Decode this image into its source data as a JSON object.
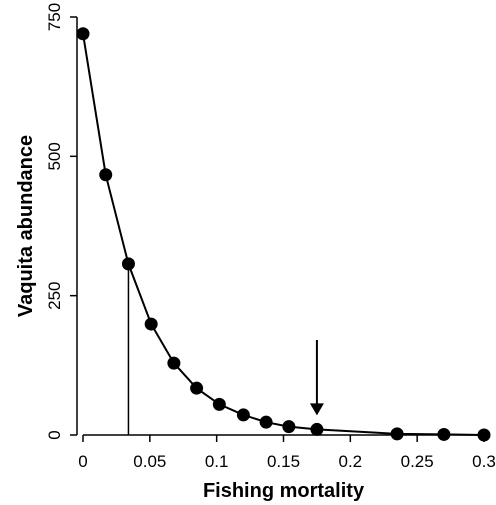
{
  "chart_data": {
    "type": "line",
    "xlabel": "Fishing mortality",
    "ylabel": "Vaquita abundance",
    "xlim": [
      0,
      0.3
    ],
    "ylim": [
      0,
      750
    ],
    "x_ticks": [
      0,
      0.05,
      0.1,
      0.15,
      0.2,
      0.25,
      0.3
    ],
    "x_tick_labels": [
      "0",
      "0.05",
      "0.1",
      "0.15",
      "0.2",
      "0.25",
      "0.3"
    ],
    "y_ticks": [
      0,
      250,
      500,
      750
    ],
    "y_tick_labels": [
      "0",
      "250",
      "500",
      "750"
    ],
    "grid": false,
    "legend": "none",
    "series": [
      {
        "x": [
          0,
          0.017,
          0.034,
          0.051,
          0.068,
          0.085,
          0.102,
          0.12,
          0.137,
          0.154,
          0.175,
          0.235,
          0.27,
          0.3
        ],
        "y": [
          720,
          467,
          307,
          199,
          129,
          84,
          55,
          36,
          23,
          15,
          10,
          2,
          1,
          0
        ],
        "color": "#000000",
        "marker": "circle"
      }
    ],
    "annotations": [
      {
        "type": "vertical-line",
        "x": 0.034,
        "y_from": 0,
        "y_to": 307
      },
      {
        "type": "arrow",
        "x": 0.175,
        "points_to_y": 10
      }
    ]
  }
}
